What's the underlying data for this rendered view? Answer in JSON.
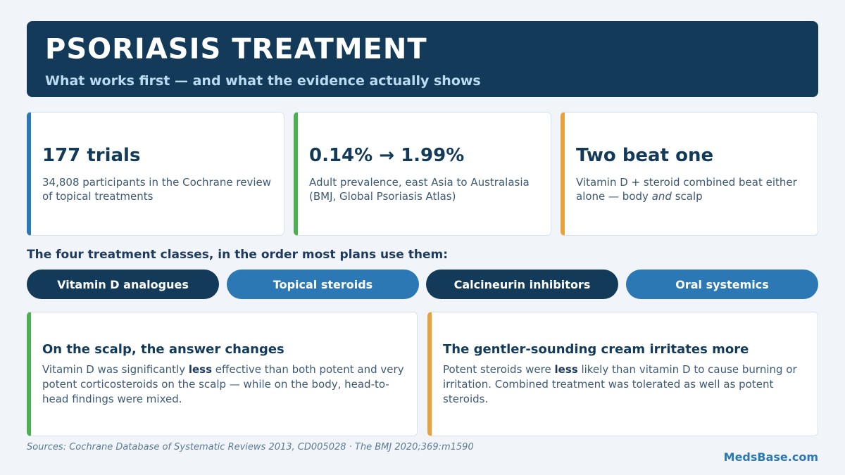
{
  "header": {
    "title": "PSORIASIS TREATMENT",
    "subtitle": "What works first — and what the evidence actually shows"
  },
  "stats": [
    {
      "value": "177 trials",
      "desc_line1": "34,808 participants in the Cochrane review",
      "desc_line2": "of topical treatments",
      "accent": "#2c78b4"
    },
    {
      "value": "0.14% → 1.99%",
      "desc_line1": "Adult prevalence, east Asia to Australasia",
      "desc_line2": "(BMJ, Global Psoriasis Atlas)",
      "accent": "#4caf50"
    },
    {
      "value": "Two beat one",
      "desc_line1": "Vitamin D + steroid combined beat either",
      "desc_pre": "alone — body ",
      "desc_em": "and",
      "desc_post": " scalp",
      "accent": "#e9a23b"
    }
  ],
  "section_label": "The four treatment classes, in the order most plans use them:",
  "treatments": [
    {
      "label": "Vitamin D analogues"
    },
    {
      "label": "Topical steroids"
    },
    {
      "label": "Calcineurin inhibitors"
    },
    {
      "label": "Oral systemics"
    }
  ],
  "notes": [
    {
      "title": "On the scalp, the answer changes",
      "pre": "Vitamin D was significantly ",
      "bold": "less",
      "post": " effective than both potent and very potent corticosteroids on the scalp — while on the body, head-to-head findings were mixed.",
      "accent": "#4caf50"
    },
    {
      "title": "The gentler-sounding cream irritates more",
      "pre": "Potent steroids were ",
      "bold": "less",
      "post": " likely than vitamin D to cause burning or irritation. Combined treatment was tolerated as well as potent steroids.",
      "accent": "#e9a23b"
    }
  ],
  "sources": "Sources: Cochrane Database of Systematic Reviews 2013, CD005028 · The BMJ 2020;369:m1590",
  "brand": "MedsBase.com",
  "colors": {
    "navy": "#133a58",
    "blue": "#2c78b4",
    "green": "#4caf50",
    "orange": "#e9a23b",
    "background": "#f1f5f9"
  }
}
